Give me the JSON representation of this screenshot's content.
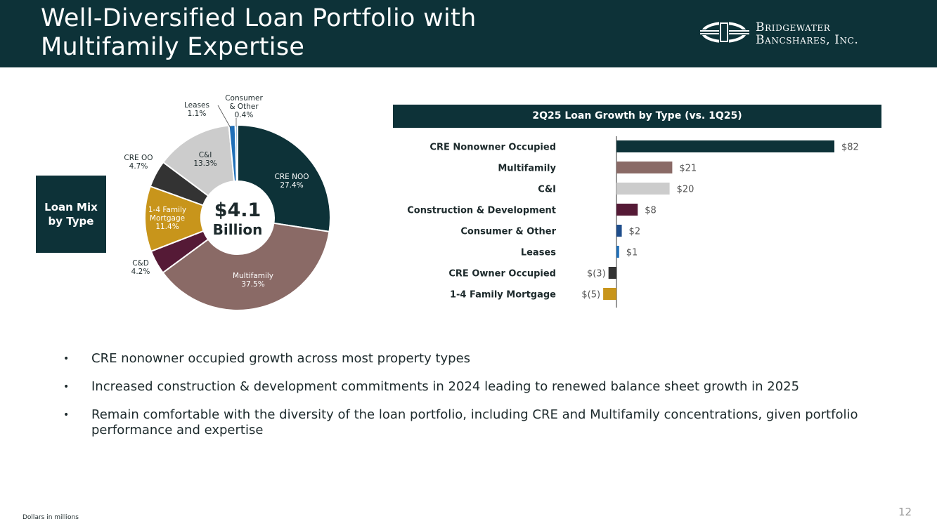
{
  "header": {
    "title_line1": "Well-Diversified Loan Portfolio with",
    "title_line2": "Multifamily Expertise",
    "logo_line1": "Bridgewater",
    "logo_line2": "Bancshares, Inc."
  },
  "loan_mix_label": "Loan Mix by Type",
  "colors": {
    "navy": "#0d3238",
    "mauve": "#8a6a66",
    "plum": "#551a36",
    "gold": "#c8951b",
    "charcoal": "#333333",
    "lightgray": "#cccccc",
    "blue": "#1f6fb8",
    "lightblue": "#9ec3e0"
  },
  "chart_data": [
    {
      "type": "pie",
      "title": "Loan Mix by Type",
      "center_value": "$4.1",
      "center_label": "Billion",
      "slices": [
        {
          "label": "CRE NOO",
          "display": "27.4%",
          "value": 27.4,
          "color": "#0d3238"
        },
        {
          "label": "Multifamily",
          "display": "37.5%",
          "value": 37.5,
          "color": "#8a6a66"
        },
        {
          "label": "C&D",
          "display": "4.2%",
          "value": 4.2,
          "color": "#551a36"
        },
        {
          "label": "1-4 Family Mortgage",
          "display": "11.4%",
          "value": 11.4,
          "color": "#c8951b"
        },
        {
          "label": "CRE OO",
          "display": "4.7%",
          "value": 4.7,
          "color": "#333333"
        },
        {
          "label": "C&I",
          "display": "13.3%",
          "value": 13.3,
          "color": "#cccccc"
        },
        {
          "label": "Leases",
          "display": "1.1%",
          "value": 1.1,
          "color": "#1f6fb8"
        },
        {
          "label": "Consumer & Other",
          "display": "0.4%",
          "value": 0.4,
          "color": "#9ec3e0"
        }
      ]
    },
    {
      "type": "bar",
      "orientation": "horizontal",
      "title": "2Q25 Loan Growth by Type (vs. 1Q25)",
      "categories": [
        "CRE Nonowner Occupied",
        "Multifamily",
        "C&I",
        "Construction & Development",
        "Consumer & Other",
        "Leases",
        "CRE Owner Occupied",
        "1-4 Family Mortgage"
      ],
      "values": [
        82,
        21,
        20,
        8,
        2,
        1,
        -3,
        -5
      ],
      "value_labels": [
        "$82",
        "$21",
        "$20",
        "$8",
        "$2",
        "$1",
        "$(3)",
        "$(5)"
      ],
      "colors": [
        "#0d3238",
        "#8a6a66",
        "#cccccc",
        "#551a36",
        "#1f4e8c",
        "#1f6fb8",
        "#333333",
        "#c8951b"
      ],
      "xlim": [
        -5,
        82
      ]
    }
  ],
  "bullets": [
    "CRE nonowner occupied growth across most property types",
    "Increased construction & development commitments in 2024 leading to renewed balance sheet growth in 2025",
    "Remain comfortable with the diversity of the loan portfolio, including CRE and Multifamily concentrations, given portfolio performance and expertise"
  ],
  "bullet_symbol": "•",
  "footnote": "Dollars in millions",
  "page_number": "12"
}
